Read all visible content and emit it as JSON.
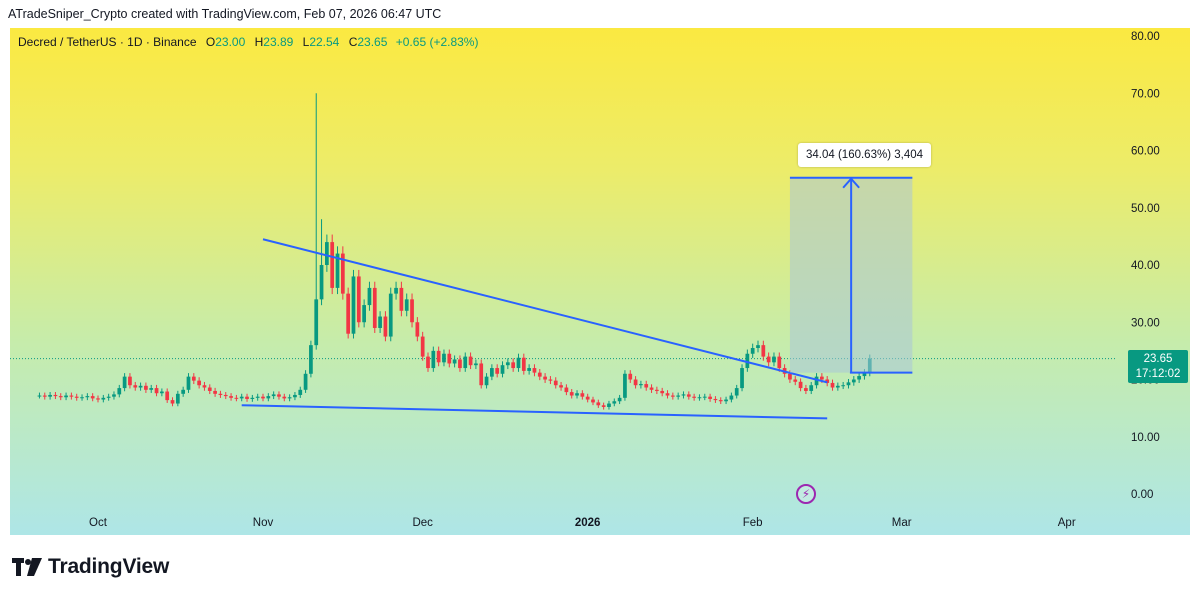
{
  "header": {
    "caption": "ATradeSniper_Crypto created with TradingView.com, Feb 07, 2026 06:47 UTC"
  },
  "symbol": {
    "title": "Decred / TetherUS · 1D · Binance",
    "open_label": "O",
    "open": "23.00",
    "high_label": "H",
    "high": "23.89",
    "low_label": "L",
    "low": "22.54",
    "close_label": "C",
    "close": "23.65",
    "change": "+0.65 (+2.83%)"
  },
  "price_badge": {
    "price": "23.65",
    "countdown": "17:12:02"
  },
  "measure": {
    "label": "34.04 (160.63%) 3,404"
  },
  "footer": {
    "brand": "TradingView"
  },
  "colors": {
    "up": "#089981",
    "down": "#f23645",
    "trendline": "#2962ff",
    "measure_fill": "#a9c6d9",
    "badge": "#089981",
    "flash": "#9c27b0"
  },
  "icons": {
    "logo": "tradingview-logo-icon",
    "flash": "lightning-icon"
  },
  "chart_data": {
    "type": "candlestick",
    "y_axis": {
      "ticks": [
        "80.00",
        "70.00",
        "60.00",
        "50.00",
        "40.00",
        "30.00",
        "20.00",
        "10.00",
        "0.00"
      ],
      "range": [
        0,
        80
      ],
      "side": "right"
    },
    "x_axis": {
      "tick_labels": [
        "Oct",
        "Nov",
        "Dec",
        "2026",
        "Feb",
        "Mar",
        "Apr"
      ],
      "tick_dates": [
        "2025-10-01",
        "2025-11-01",
        "2025-12-01",
        "2026-01-01",
        "2026-02-01",
        "2026-03-01",
        "2026-04-01"
      ]
    },
    "current_price": 23.65,
    "candles_approx": {
      "start_date": "2025-09-20",
      "closes": [
        17.2,
        17.0,
        17.3,
        17.1,
        16.9,
        17.2,
        17.0,
        16.8,
        16.9,
        17.1,
        16.7,
        16.5,
        16.8,
        17.0,
        17.4,
        18.5,
        20.5,
        19.0,
        18.6,
        18.9,
        18.2,
        18.5,
        17.6,
        17.9,
        16.4,
        15.8,
        17.5,
        18.2,
        20.5,
        19.8,
        19.0,
        18.6,
        18.0,
        17.5,
        17.3,
        17.1,
        16.8,
        16.7,
        17.0,
        16.6,
        16.8,
        17.0,
        16.7,
        17.1,
        17.4,
        17.0,
        16.7,
        16.9,
        17.3,
        18.2,
        21.0,
        26.0,
        34.0,
        40.0,
        44.0,
        36.0,
        42.0,
        35.0,
        28.0,
        38.0,
        30.0,
        33.0,
        36.0,
        29.0,
        31.0,
        27.5,
        35.0,
        36.0,
        32.0,
        34.0,
        30.0,
        27.5,
        24.0,
        22.0,
        25.0,
        23.0,
        24.5,
        22.8,
        23.5,
        22.0,
        24.0,
        22.5,
        22.8,
        19.0,
        20.5,
        22.0,
        21.0,
        22.5,
        23.0,
        22.0,
        23.8,
        21.5,
        22.0,
        21.2,
        20.5,
        20.0,
        19.8,
        19.0,
        18.6,
        17.8,
        17.2,
        17.6,
        17.0,
        16.5,
        16.0,
        15.5,
        15.2,
        15.8,
        16.2,
        16.8,
        21.0,
        20.0,
        19.0,
        19.2,
        18.6,
        18.2,
        18.0,
        17.6,
        17.2,
        17.0,
        17.2,
        17.4,
        17.0,
        16.8,
        16.9,
        17.0,
        16.6,
        16.4,
        16.2,
        16.5,
        17.2,
        18.5,
        22.0,
        24.5,
        25.5,
        26.0,
        24.0,
        23.0,
        24.0,
        22.0,
        21.0,
        20.0,
        19.6,
        18.5,
        18.0,
        19.0,
        20.5,
        20.0,
        19.4,
        18.6,
        18.9,
        19.0,
        19.5,
        20.0,
        20.6,
        21.2,
        23.65
      ]
    },
    "trendlines": [
      {
        "name": "upper",
        "from": {
          "date": "2025-11-01",
          "price": 44.5
        },
        "to": {
          "date": "2026-02-15",
          "price": 19.5
        }
      },
      {
        "name": "lower",
        "from": {
          "date": "2025-10-28",
          "price": 15.5
        },
        "to": {
          "date": "2026-02-15",
          "price": 13.2
        }
      }
    ],
    "measure_box": {
      "from": {
        "date": "2026-02-08",
        "price": 21.2
      },
      "to": {
        "date": "2026-03-03",
        "price": 55.24
      },
      "label": "34.04 (160.63%) 3,404"
    }
  }
}
